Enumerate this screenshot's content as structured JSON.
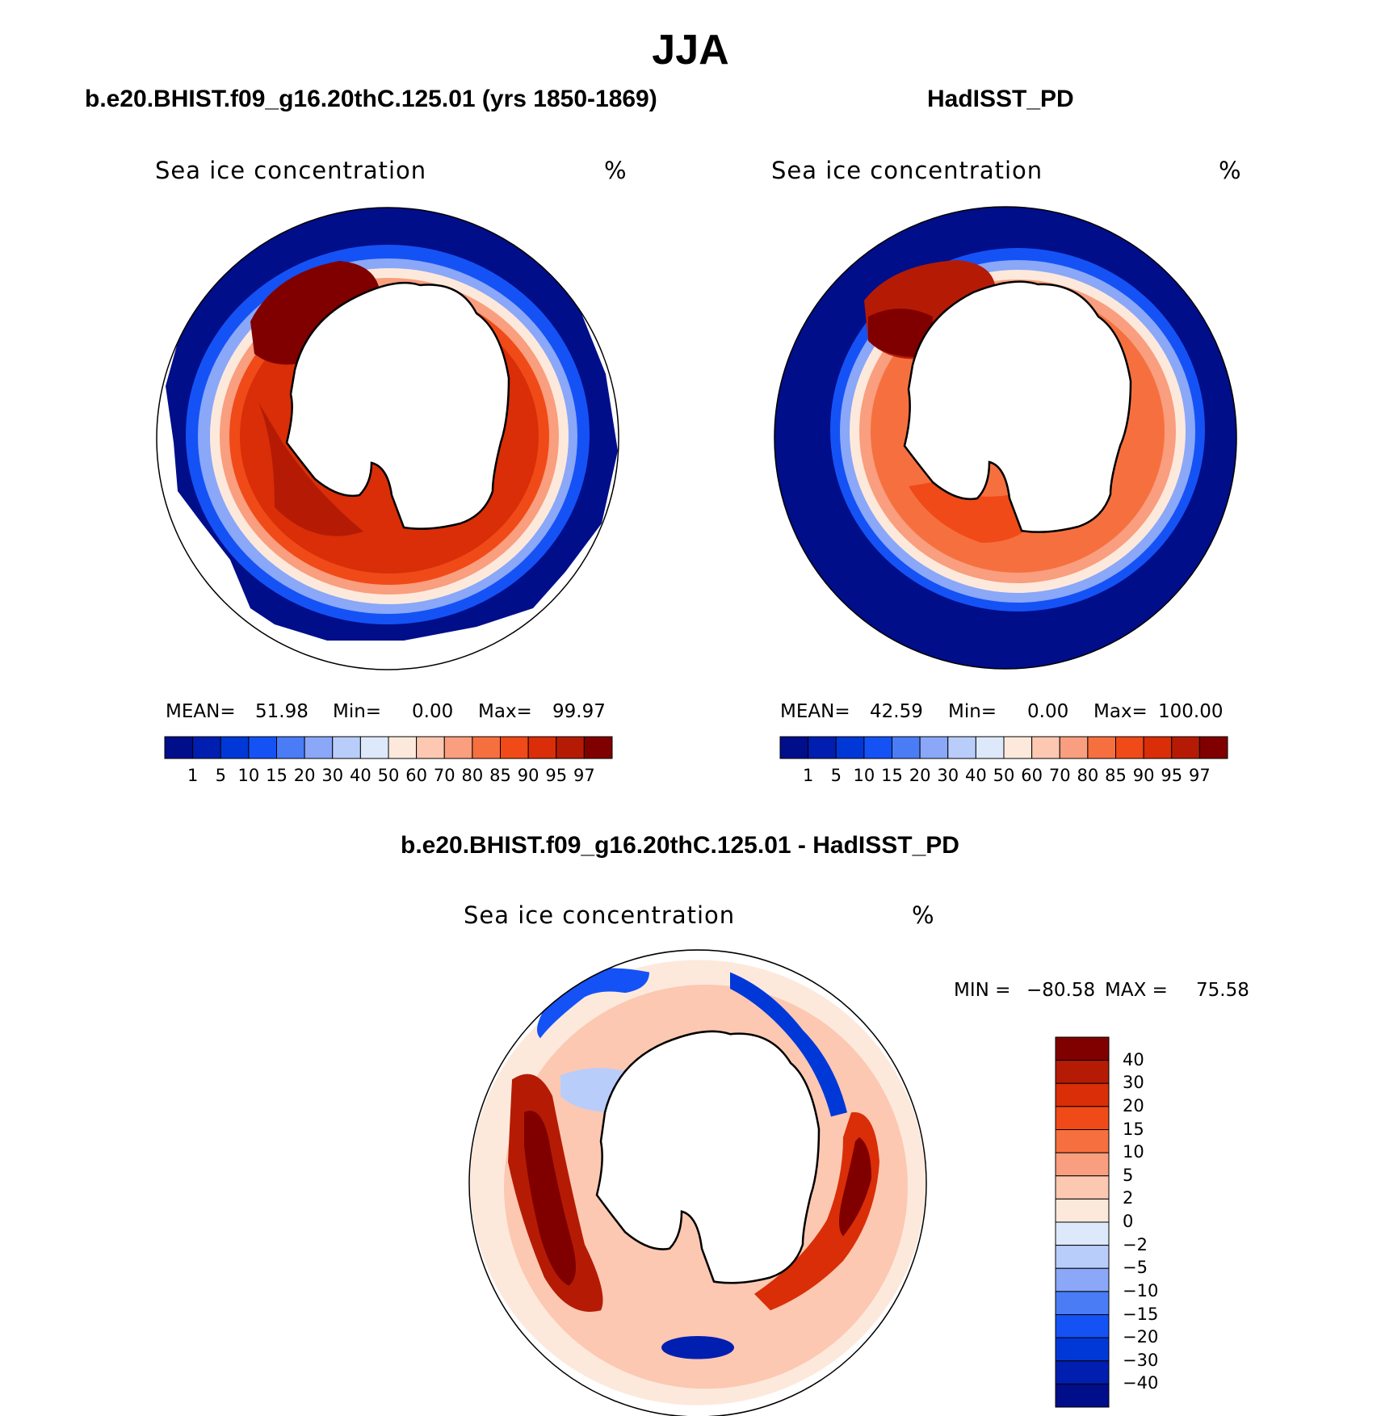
{
  "title": "JJA",
  "colors": {
    "seq": [
      "#000e8a",
      "#001fb0",
      "#0038d8",
      "#1552f5",
      "#4a7cf6",
      "#8aa7f8",
      "#b9cdfb",
      "#dde9fb",
      "#fde9dc",
      "#fcc8b2",
      "#f99e7e",
      "#f6703f",
      "#f04a18",
      "#d92e08",
      "#b51b04",
      "#800000"
    ],
    "diff": [
      "#800000",
      "#b51b04",
      "#d92e08",
      "#f04a18",
      "#f6703f",
      "#f99e7e",
      "#fcc8b2",
      "#fde9dc",
      "#dde9fb",
      "#b9cdfb",
      "#8aa7f8",
      "#4a7cf6",
      "#1552f5",
      "#0038d8",
      "#001fb0",
      "#000e8a"
    ]
  },
  "chart_data": [
    {
      "type": "heatmap",
      "title": "b.e20.BHIST.f09_g16.20thC.125.01 (yrs 1850-1869)",
      "variable": "Sea ice concentration",
      "units": "%",
      "stats": {
        "mean_label": "MEAN=",
        "mean": "51.98",
        "min_label": "Min=",
        "min": "0.00",
        "max_label": "Max=",
        "max": "99.97"
      },
      "levels": [
        "1",
        "5",
        "10",
        "15",
        "20",
        "30",
        "40",
        "50",
        "60",
        "70",
        "80",
        "85",
        "90",
        "95",
        "97"
      ]
    },
    {
      "type": "heatmap",
      "title": "HadISST_PD",
      "variable": "Sea ice concentration",
      "units": "%",
      "stats": {
        "mean_label": "MEAN=",
        "mean": "42.59",
        "min_label": "Min=",
        "min": "0.00",
        "max_label": "Max=",
        "max": "100.00"
      },
      "levels": [
        "1",
        "5",
        "10",
        "15",
        "20",
        "30",
        "40",
        "50",
        "60",
        "70",
        "80",
        "85",
        "90",
        "95",
        "97"
      ]
    },
    {
      "type": "heatmap",
      "title": "b.e20.BHIST.f09_g16.20thC.125.01 - HadISST_PD",
      "variable": "Sea ice concentration",
      "units": "%",
      "stats": {
        "min_label": "MIN =",
        "min": "−80.58",
        "max_label": "MAX =",
        "max": "75.58"
      },
      "levels": [
        "40",
        "30",
        "20",
        "15",
        "10",
        "5",
        "2",
        "0",
        "−2",
        "−5",
        "−10",
        "−15",
        "−20",
        "−30",
        "−40"
      ]
    }
  ]
}
